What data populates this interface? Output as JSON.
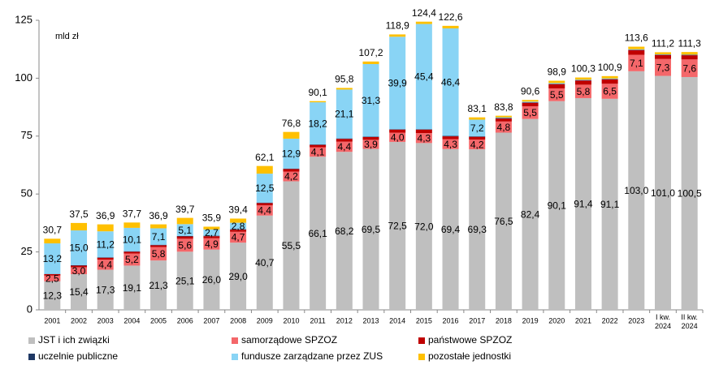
{
  "chart_data": {
    "type": "stacked_bar",
    "annotation": "mld zł",
    "categories": [
      "2001",
      "2002",
      "2003",
      "2004",
      "2005",
      "2006",
      "2007",
      "2008",
      "2009",
      "2010",
      "2011",
      "2012",
      "2013",
      "2014",
      "2015",
      "2016",
      "2017",
      "2018",
      "2019",
      "2020",
      "2021",
      "2022",
      "2023",
      "I kw. 2024",
      "II kw. 2024"
    ],
    "ylim": [
      0,
      125
    ],
    "yticks": [
      0,
      25,
      50,
      75,
      100,
      125
    ],
    "series": [
      {
        "name": "JST i ich związki",
        "color": "#bfbfbf",
        "values": [
          12.3,
          15.4,
          17.3,
          19.1,
          21.3,
          25.1,
          26.0,
          29.0,
          40.7,
          55.5,
          66.1,
          68.2,
          69.5,
          72.5,
          72.0,
          69.4,
          69.3,
          76.5,
          82.4,
          90.1,
          91.4,
          91.1,
          103.0,
          101.0,
          100.5
        ],
        "value_labels": [
          "12,3",
          "15,4",
          "17,3",
          "19,1",
          "21,3",
          "25,1",
          "26,0",
          "29,0",
          "40,7",
          "55,5",
          "66,1",
          "68,2",
          "69,5",
          "72,5",
          "72,0",
          "69,4",
          "69,3",
          "76,5",
          "82,4",
          "90,1",
          "91,4",
          "91,1",
          "103,0",
          "101,0",
          "100,5"
        ]
      },
      {
        "name": "samorządowe SPZOZ",
        "color": "#f4676a",
        "values": [
          2.5,
          3.0,
          4.4,
          5.2,
          5.8,
          5.6,
          4.9,
          4.7,
          4.4,
          4.2,
          4.1,
          4.4,
          3.9,
          4.0,
          4.3,
          4.3,
          4.2,
          4.8,
          5.5,
          5.5,
          5.8,
          6.5,
          7.1,
          7.3,
          7.6
        ],
        "value_labels": [
          "2,5",
          "3,0",
          "4,4",
          "5,2",
          "5,8",
          "5,6",
          "4,9",
          "4,7",
          "4,4",
          "4,2",
          "4,1",
          "4,4",
          "3,9",
          "4,0",
          "4,3",
          "4,3",
          "4,2",
          "4,8",
          "5,5",
          "5,5",
          "5,8",
          "6,5",
          "7,1",
          "7,3",
          "7,6"
        ]
      },
      {
        "name": "państwowe SPZOZ",
        "color": "#c00000",
        "values": [
          0.6,
          0.7,
          0.8,
          0.8,
          0.8,
          1.0,
          0.9,
          0.9,
          1.0,
          1.1,
          1.0,
          1.2,
          1.2,
          1.3,
          1.5,
          1.2,
          1.2,
          1.3,
          1.5,
          1.8,
          1.8,
          1.9,
          2.0,
          1.7,
          1.8
        ]
      },
      {
        "name": "uczelnie publiczne",
        "color": "#1f3864",
        "values": [
          0.1,
          0.2,
          0.2,
          0.2,
          0.2,
          0.2,
          0.2,
          0.2,
          0.2,
          0.2,
          0.2,
          0.2,
          0.2,
          0.2,
          0.2,
          0.2,
          0.2,
          0.2,
          0.2,
          0.2,
          0.2,
          0.2,
          0.2,
          0.2,
          0.2
        ]
      },
      {
        "name": "fundusze zarządzane przez ZUS",
        "color": "#89d4f5",
        "values": [
          13.2,
          15.0,
          11.2,
          10.1,
          7.1,
          5.1,
          2.7,
          2.8,
          12.5,
          12.9,
          18.2,
          21.1,
          31.3,
          39.9,
          45.4,
          46.4,
          7.2,
          0.3,
          0.3,
          0.3,
          0.2,
          0.2,
          0.2,
          0.1,
          0.1
        ],
        "value_labels": [
          "13,2",
          "15,0",
          "11,2",
          "10,1",
          "7,1",
          "5,1",
          "2,7",
          "2,8",
          "12,5",
          "12,9",
          "18,2",
          "21,1",
          "31,3",
          "39,9",
          "45,4",
          "46,4",
          "7,2",
          null,
          null,
          null,
          null,
          null,
          null,
          null,
          null
        ]
      },
      {
        "name": "pozostałe jednostki",
        "color": "#ffc000",
        "values": [
          2.0,
          3.2,
          3.0,
          2.3,
          1.7,
          2.7,
          1.2,
          1.8,
          3.3,
          2.9,
          0.5,
          0.7,
          1.1,
          1.0,
          1.0,
          1.1,
          1.0,
          0.7,
          0.7,
          1.0,
          0.9,
          1.0,
          1.1,
          0.9,
          1.1
        ]
      }
    ],
    "totals": [
      30.7,
      37.5,
      36.9,
      37.7,
      36.9,
      39.7,
      35.9,
      39.4,
      62.1,
      76.8,
      90.1,
      95.8,
      107.2,
      118.9,
      124.4,
      122.6,
      83.1,
      83.8,
      90.6,
      98.9,
      100.3,
      100.9,
      113.6,
      111.2,
      111.3
    ],
    "total_labels": [
      "30,7",
      "37,5",
      "36,9",
      "37,7",
      "36,9",
      "39,7",
      "35,9",
      "39,4",
      "62,1",
      "76,8",
      "90,1",
      "95,8",
      "107,2",
      "118,9",
      "124,4",
      "122,6",
      "83,1",
      "83,8",
      "90,6",
      "98,9",
      "100,3",
      "100,9",
      "113,6",
      "111,2",
      "111,3"
    ]
  }
}
